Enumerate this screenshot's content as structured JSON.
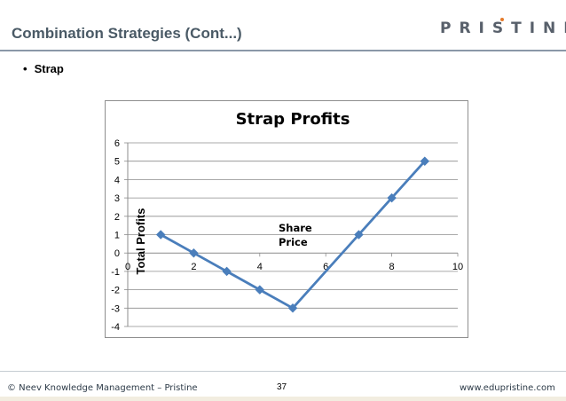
{
  "slide": {
    "title": "Combination Strategies (Cont...)",
    "bullet": "Strap",
    "logo": "PRISTINE",
    "footer_left": "© Neev Knowledge Management – Pristine",
    "page_number": "37",
    "footer_right": "www.edupristine.com"
  },
  "chart_data": {
    "type": "line",
    "title": "Strap Profits",
    "xlabel": "Share Price",
    "ylabel": "Total Profits",
    "x_ticks": [
      0,
      2,
      4,
      6,
      8,
      10
    ],
    "y_ticks": [
      6,
      5,
      4,
      3,
      2,
      1,
      0,
      -1,
      -2,
      -3,
      -4
    ],
    "xlim": [
      0,
      10
    ],
    "ylim": [
      -4,
      6
    ],
    "grid": true,
    "marker": "diamond",
    "series_color": "#4a7ebb",
    "series": [
      {
        "x": [
          1,
          2,
          3,
          4,
          5,
          7,
          8,
          9
        ],
        "values": [
          1,
          0,
          -1,
          -2,
          -3,
          1,
          3,
          5
        ]
      }
    ]
  }
}
